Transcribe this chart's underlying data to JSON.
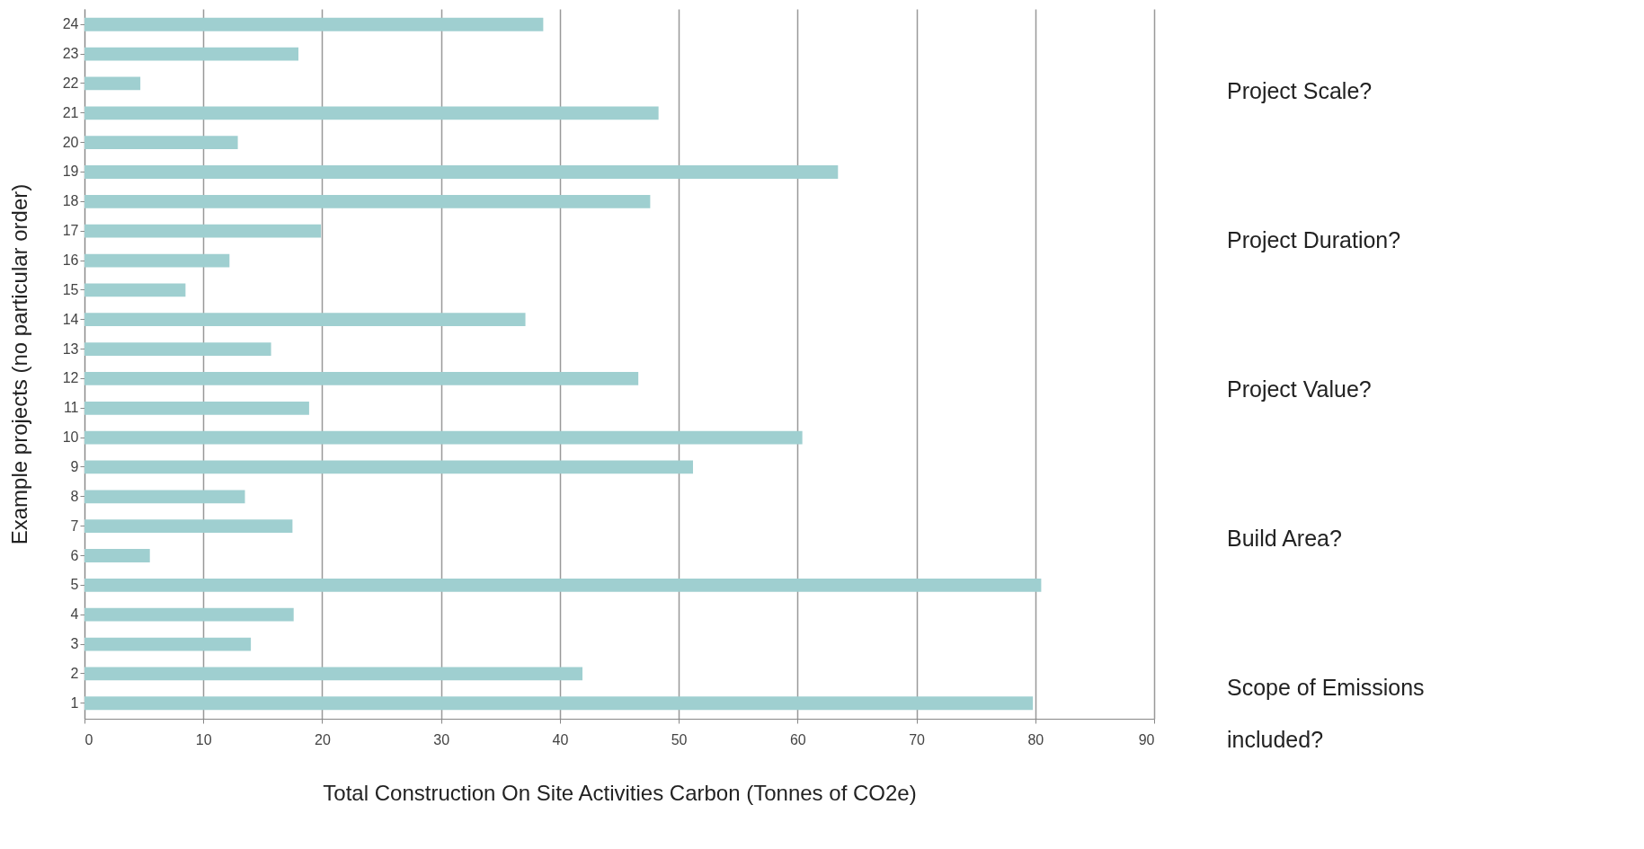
{
  "chart_data": {
    "type": "bar",
    "orientation": "horizontal",
    "xlabel": "Total Construction On Site Activities Carbon (Tonnes of CO2e)",
    "ylabel": "Example projects  (no particular order)",
    "categories": [
      "24",
      "23",
      "22",
      "21",
      "20",
      "19",
      "18",
      "17",
      "16",
      "15",
      "14",
      "13",
      "12",
      "11",
      "10",
      "9",
      "8",
      "7",
      "6",
      "5",
      "4",
      "3",
      "2",
      "1"
    ],
    "values": [
      38.6,
      18.0,
      4.7,
      48.3,
      12.9,
      63.4,
      47.6,
      19.9,
      12.2,
      8.5,
      37.1,
      15.7,
      46.6,
      18.9,
      60.4,
      51.2,
      13.5,
      17.5,
      5.5,
      80.5,
      17.6,
      14.0,
      41.9,
      79.8
    ],
    "color": "#9fcfd0",
    "xlim": [
      0,
      90
    ],
    "xticks": [
      0,
      10,
      20,
      30,
      40,
      50,
      60,
      70,
      80,
      90
    ],
    "grid": "x",
    "annotations": [
      "Project Scale?",
      "Project Duration?",
      "Project Value?",
      "Build Area?",
      "Scope of Emissions included?"
    ]
  }
}
